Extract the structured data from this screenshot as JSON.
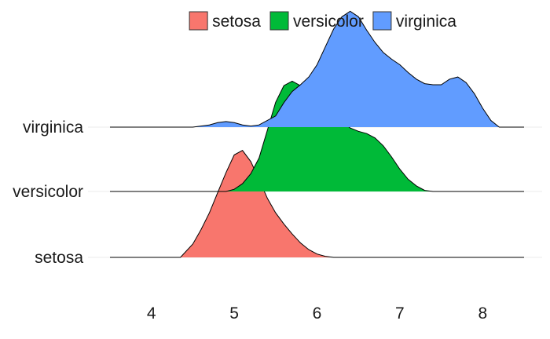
{
  "chart_data": {
    "type": "ridgeline",
    "title": "",
    "xlabel": "",
    "ylabel": "",
    "xlim": [
      3.5,
      8.5
    ],
    "xticks": [
      4,
      5,
      6,
      7,
      8
    ],
    "xtick_labels": [
      "4",
      "5",
      "6",
      "7",
      "8"
    ],
    "categories": [
      "setosa",
      "versicolor",
      "virginica"
    ],
    "legend": {
      "position": "top",
      "entries": [
        "setosa",
        "versicolor",
        "virginica"
      ]
    },
    "series": [
      {
        "name": "setosa",
        "color": "#F8766D",
        "x": [
          4.35,
          4.5,
          4.6,
          4.7,
          4.8,
          4.9,
          5.0,
          5.1,
          5.2,
          5.3,
          5.4,
          5.5,
          5.6,
          5.7,
          5.8,
          5.9,
          6.0,
          6.1,
          6.2
        ],
        "y": [
          0.0,
          0.12,
          0.25,
          0.4,
          0.58,
          0.76,
          0.92,
          0.96,
          0.86,
          0.7,
          0.53,
          0.4,
          0.3,
          0.21,
          0.13,
          0.07,
          0.03,
          0.01,
          0.0
        ]
      },
      {
        "name": "versicolor",
        "color": "#00BA38",
        "x": [
          4.9,
          5.0,
          5.1,
          5.2,
          5.3,
          5.4,
          5.5,
          5.6,
          5.7,
          5.8,
          5.9,
          6.0,
          6.1,
          6.2,
          6.3,
          6.4,
          6.5,
          6.6,
          6.7,
          6.8,
          6.9,
          7.0,
          7.1,
          7.2,
          7.3,
          7.4
        ],
        "y": [
          0.0,
          0.02,
          0.07,
          0.16,
          0.3,
          0.55,
          0.8,
          0.95,
          0.99,
          0.95,
          0.86,
          0.82,
          0.78,
          0.71,
          0.63,
          0.57,
          0.54,
          0.52,
          0.48,
          0.41,
          0.31,
          0.2,
          0.11,
          0.05,
          0.01,
          0.0
        ]
      },
      {
        "name": "virginica",
        "color": "#619CFF",
        "x": [
          4.5,
          4.7,
          4.8,
          4.9,
          5.0,
          5.1,
          5.2,
          5.3,
          5.5,
          5.6,
          5.7,
          5.8,
          5.9,
          6.0,
          6.1,
          6.2,
          6.3,
          6.4,
          6.5,
          6.6,
          6.7,
          6.8,
          6.9,
          7.0,
          7.1,
          7.2,
          7.3,
          7.4,
          7.5,
          7.6,
          7.7,
          7.8,
          7.9,
          8.0,
          8.1,
          8.2
        ],
        "y": [
          0.0,
          0.02,
          0.04,
          0.05,
          0.04,
          0.02,
          0.01,
          0.02,
          0.1,
          0.22,
          0.32,
          0.38,
          0.45,
          0.56,
          0.72,
          0.88,
          0.99,
          1.04,
          0.99,
          0.87,
          0.76,
          0.67,
          0.61,
          0.56,
          0.49,
          0.43,
          0.39,
          0.38,
          0.38,
          0.43,
          0.45,
          0.4,
          0.3,
          0.17,
          0.06,
          0.0
        ]
      }
    ]
  }
}
